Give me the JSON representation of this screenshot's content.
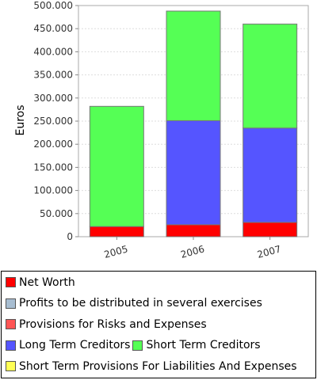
{
  "chart_data": {
    "type": "bar",
    "stacked": true,
    "categories": [
      "2005",
      "2006",
      "2007"
    ],
    "ylabel": "Euros",
    "xlabel": "",
    "ylim": [
      0,
      500000
    ],
    "yticks": [
      "0",
      "50.000",
      "100.000",
      "150.000",
      "200.000",
      "250.000",
      "300.000",
      "350.000",
      "400.000",
      "450.000",
      "500.000"
    ],
    "grid": true,
    "legend_position": "bottom",
    "series": [
      {
        "name": "Net Worth",
        "color": "#ff0000",
        "values": [
          22000,
          26000,
          31000
        ]
      },
      {
        "name": "Profits to be distributed in several exercises",
        "color": "#a7bdd1",
        "values": [
          0,
          0,
          0
        ]
      },
      {
        "name": "Provisions for Risks and Expenses",
        "color": "#ff5555",
        "values": [
          0,
          0,
          0
        ]
      },
      {
        "name": "Long Term Creditors",
        "color": "#5555ff",
        "values": [
          0,
          225000,
          204000
        ]
      },
      {
        "name": "Short Term Creditors",
        "color": "#55ff55",
        "values": [
          260000,
          237000,
          225000
        ]
      },
      {
        "name": "Short Term Provisions For Liabilities And Expenses",
        "color": "#ffff55",
        "values": [
          0,
          0,
          0
        ]
      }
    ]
  },
  "legend": {
    "rows": [
      [
        {
          "name": "Net Worth",
          "color": "#ff0000"
        }
      ],
      [
        {
          "name": "Profits to be distributed in several exercises",
          "color": "#a7bdd1"
        }
      ],
      [
        {
          "name": "Provisions for Risks and Expenses",
          "color": "#ff5555"
        }
      ],
      [
        {
          "name": "Long Term Creditors",
          "color": "#5555ff"
        },
        {
          "name": "Short Term Creditors",
          "color": "#55ff55"
        }
      ],
      [
        {
          "name": "Short Term Provisions For Liabilities And Expenses",
          "color": "#ffff55"
        }
      ]
    ]
  }
}
